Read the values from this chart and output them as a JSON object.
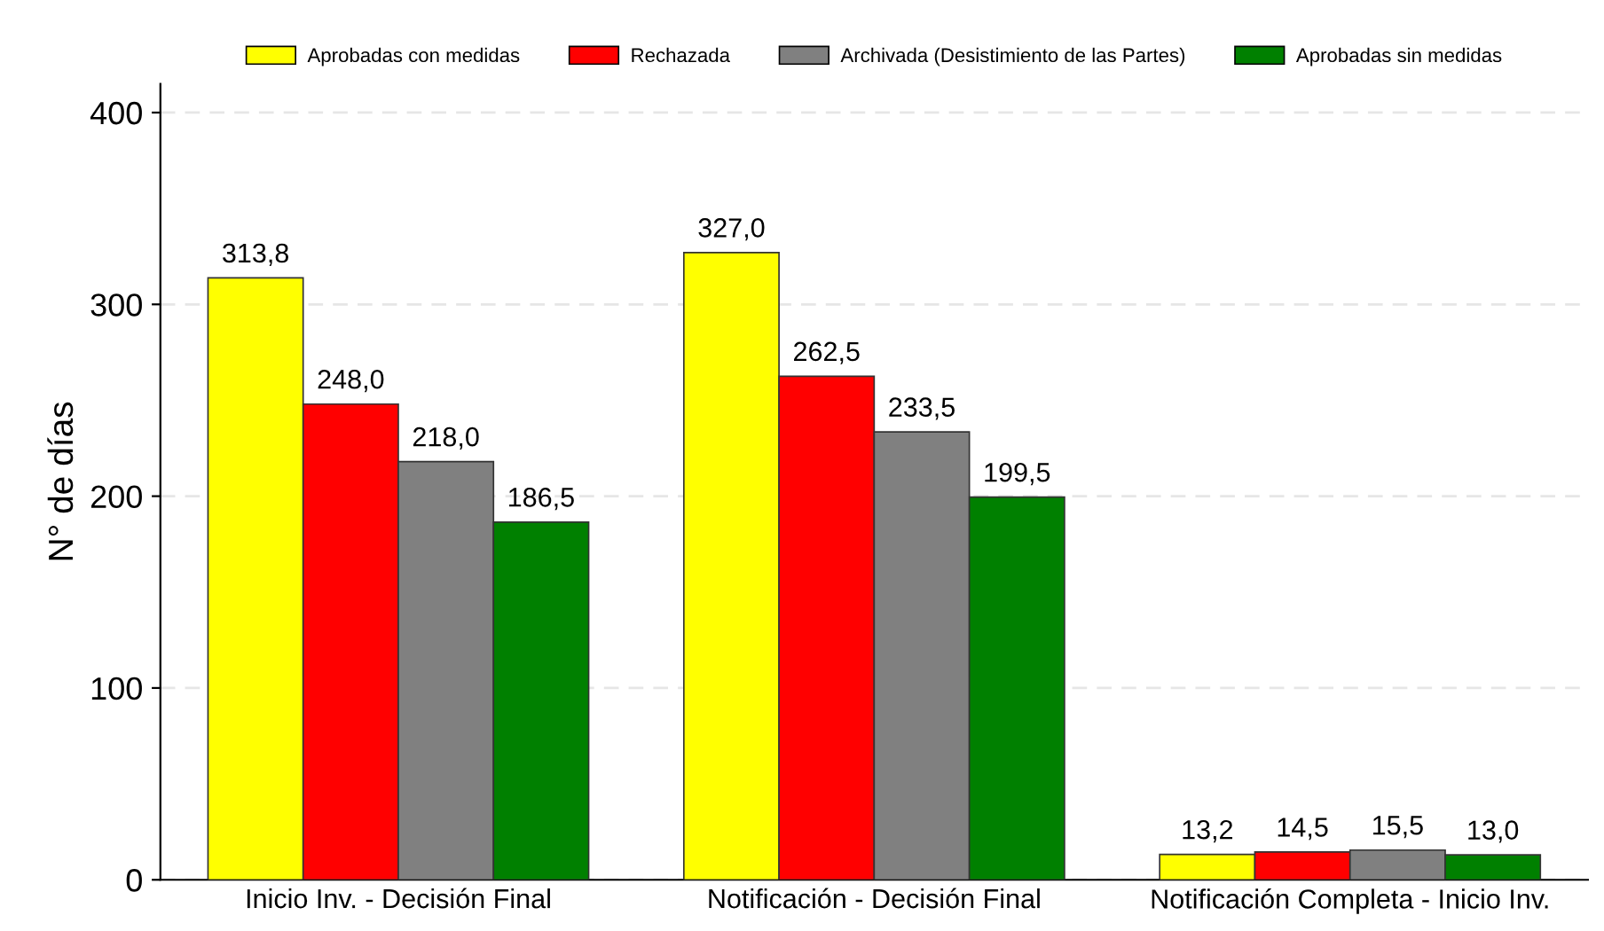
{
  "chart_data": {
    "type": "bar",
    "ylabel": "N° de días",
    "categories": [
      "Inicio Inv. - Decisión Final",
      "Notificación - Decisión Final",
      "Notificación Completa - Inicio Inv."
    ],
    "series": [
      {
        "name": "Aprobadas con medidas",
        "color": "#ffff00",
        "values": [
          313.8,
          327.0,
          13.2
        ],
        "value_labels": [
          "313,8",
          "327,0",
          "13,2"
        ]
      },
      {
        "name": "Rechazada",
        "color": "#ff0000",
        "values": [
          248.0,
          262.5,
          14.5
        ],
        "value_labels": [
          "248,0",
          "262,5",
          "14,5"
        ]
      },
      {
        "name": "Archivada (Desistimiento de las Partes)",
        "color": "#808080",
        "values": [
          218.0,
          233.5,
          15.5
        ],
        "value_labels": [
          "218,0",
          "233,5",
          "15,5"
        ]
      },
      {
        "name": "Aprobadas sin medidas",
        "color": "#008000",
        "values": [
          186.5,
          199.5,
          13.0
        ],
        "value_labels": [
          "186,5",
          "199,5",
          "13,0"
        ]
      }
    ],
    "ylim": [
      0,
      415
    ],
    "yticks": [
      0,
      100,
      200,
      300,
      400
    ],
    "grid": "y",
    "legend": "top"
  }
}
